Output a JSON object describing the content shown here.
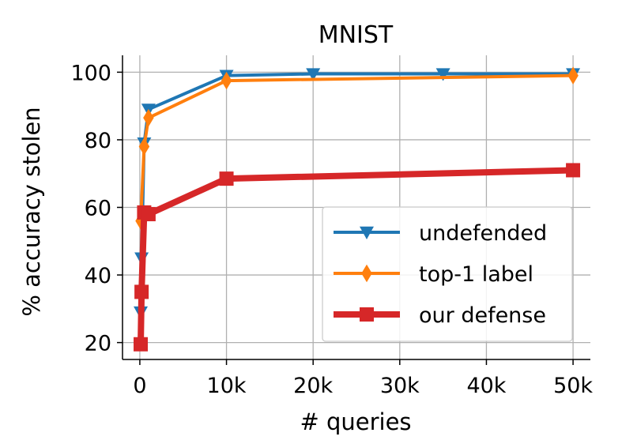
{
  "chart_data": {
    "type": "line",
    "title": "MNIST",
    "xlabel": "# queries",
    "ylabel": "% accuracy stolen",
    "xlim": [
      -2000,
      52000
    ],
    "ylim": [
      15,
      105
    ],
    "xticks": [
      0,
      10000,
      20000,
      30000,
      40000,
      50000
    ],
    "xtick_labels": [
      "0",
      "10k",
      "20k",
      "30k",
      "40k",
      "50k"
    ],
    "yticks": [
      20,
      40,
      60,
      80,
      100
    ],
    "ytick_labels": [
      "20",
      "40",
      "60",
      "80",
      "100"
    ],
    "grid": true,
    "legend_position": "lower-right",
    "series": [
      {
        "name": "undefended",
        "color": "#1f77b4",
        "marker": "triangle-down",
        "x": [
          100,
          200,
          500,
          1000,
          10000,
          20000,
          35000,
          50000
        ],
        "y": [
          29,
          45,
          79,
          89,
          99,
          99.5,
          99.5,
          99.5
        ]
      },
      {
        "name": "top-1 label",
        "color": "#ff7f0e",
        "marker": "diamond",
        "x": [
          100,
          500,
          1000,
          10000,
          50000
        ],
        "y": [
          56,
          78,
          86.5,
          97.5,
          99
        ]
      },
      {
        "name": "our defense",
        "color": "#d62728",
        "marker": "square",
        "x": [
          100,
          200,
          500,
          1000,
          10000,
          50000
        ],
        "y": [
          19.5,
          35,
          58.5,
          58,
          68.5,
          71
        ]
      }
    ]
  }
}
